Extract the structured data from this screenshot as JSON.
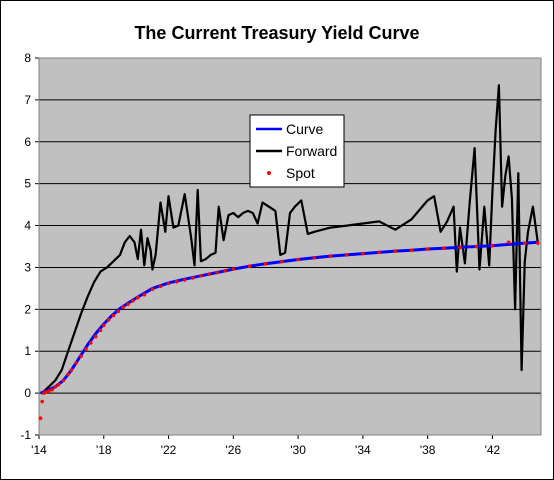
{
  "chart_data": {
    "type": "line",
    "title": "The Current Treasury Yield Curve",
    "xlabel": "",
    "ylabel": "",
    "xlim": [
      2014,
      2045
    ],
    "ylim": [
      -1,
      8
    ],
    "x_ticks": [
      2014,
      2018,
      2022,
      2026,
      2030,
      2034,
      2038,
      2042
    ],
    "x_tick_labels": [
      "'14",
      "'18",
      "'22",
      "'26",
      "'30",
      "'34",
      "'38",
      "'42"
    ],
    "y_ticks": [
      -1,
      0,
      1,
      2,
      3,
      4,
      5,
      6,
      7,
      8
    ],
    "y_tick_labels": [
      "-1",
      "0",
      "1",
      "2",
      "3",
      "4",
      "5",
      "6",
      "7",
      "8"
    ],
    "grid": true,
    "legend_position": "center-top",
    "plot_background": "#c0c0c0",
    "series": [
      {
        "name": "Curve",
        "kind": "line",
        "color": "#0000ff",
        "x": [
          2014.1,
          2014.5,
          2015,
          2015.5,
          2016,
          2016.5,
          2017,
          2017.5,
          2018,
          2018.5,
          2019,
          2019.5,
          2020,
          2021,
          2022,
          2023,
          2024,
          2025,
          2026,
          2027,
          2028,
          2029,
          2030,
          2031,
          2032,
          2033,
          2034,
          2035,
          2036,
          2037,
          2038,
          2039,
          2040,
          2041,
          2042,
          2043,
          2044,
          2044.8
        ],
        "y": [
          0.0,
          0.06,
          0.15,
          0.3,
          0.55,
          0.85,
          1.15,
          1.42,
          1.65,
          1.85,
          2.02,
          2.15,
          2.27,
          2.5,
          2.63,
          2.72,
          2.8,
          2.88,
          2.96,
          3.03,
          3.09,
          3.14,
          3.19,
          3.23,
          3.27,
          3.3,
          3.33,
          3.36,
          3.39,
          3.41,
          3.44,
          3.46,
          3.48,
          3.5,
          3.52,
          3.55,
          3.58,
          3.6
        ]
      },
      {
        "name": "Forward",
        "kind": "line",
        "color": "#000000",
        "x": [
          2014.2,
          2014.6,
          2015,
          2015.4,
          2015.8,
          2016.2,
          2016.6,
          2017,
          2017.4,
          2017.8,
          2018.2,
          2018.6,
          2019,
          2019.3,
          2019.6,
          2019.9,
          2020.1,
          2020.3,
          2020.5,
          2020.7,
          2020.9,
          2021,
          2021.2,
          2021.5,
          2021.8,
          2022,
          2022.3,
          2022.6,
          2023,
          2023.4,
          2023.6,
          2023.8,
          2024,
          2024.3,
          2024.6,
          2024.9,
          2025.1,
          2025.4,
          2025.7,
          2026,
          2026.3,
          2026.6,
          2026.9,
          2027.2,
          2027.5,
          2027.8,
          2028.2,
          2028.6,
          2028.9,
          2029.2,
          2029.5,
          2029.8,
          2030.2,
          2030.6,
          2031,
          2031.5,
          2032,
          2033,
          2034,
          2035,
          2036,
          2037,
          2038,
          2038.4,
          2038.8,
          2039.2,
          2039.6,
          2039.8,
          2040,
          2040.3,
          2040.6,
          2040.9,
          2041.2,
          2041.5,
          2041.8,
          2042,
          2042.2,
          2042.4,
          2042.6,
          2042.8,
          2043,
          2043.2,
          2043.4,
          2043.6,
          2043.8,
          2044,
          2044.2,
          2044.5,
          2044.8
        ],
        "y": [
          0.0,
          0.15,
          0.3,
          0.55,
          1.0,
          1.45,
          1.9,
          2.3,
          2.65,
          2.9,
          3.0,
          3.15,
          3.3,
          3.6,
          3.75,
          3.6,
          3.2,
          3.9,
          3.05,
          3.7,
          3.4,
          2.95,
          3.3,
          4.55,
          3.85,
          4.7,
          3.95,
          4.0,
          4.75,
          3.7,
          3.05,
          4.85,
          3.15,
          3.2,
          3.3,
          3.35,
          4.45,
          3.65,
          4.25,
          4.3,
          4.2,
          4.3,
          4.35,
          4.3,
          4.05,
          4.55,
          4.45,
          4.35,
          3.3,
          3.35,
          4.3,
          4.45,
          4.6,
          3.8,
          3.85,
          3.9,
          3.95,
          4.0,
          4.05,
          4.1,
          3.9,
          4.15,
          4.6,
          4.7,
          3.85,
          4.1,
          4.45,
          2.9,
          3.95,
          3.1,
          4.55,
          5.85,
          2.95,
          4.45,
          3.05,
          4.8,
          6.3,
          7.35,
          4.45,
          5.2,
          5.65,
          4.65,
          2.0,
          5.25,
          0.55,
          3.15,
          3.85,
          4.45,
          3.6
        ]
      },
      {
        "name": "Spot",
        "kind": "scatter",
        "color": "#ff0000",
        "x": [
          2014.1,
          2014.2,
          2014.3,
          2014.4,
          2014.6,
          2014.8,
          2015,
          2015.2,
          2015.5,
          2015.8,
          2016,
          2016.3,
          2016.6,
          2016.9,
          2017.2,
          2017.5,
          2017.8,
          2018,
          2018.3,
          2018.6,
          2018.9,
          2019.2,
          2019.5,
          2019.8,
          2020.1,
          2020.5,
          2021,
          2021.5,
          2022,
          2022.5,
          2023,
          2023.5,
          2024,
          2024.5,
          2025,
          2025.5,
          2026,
          2027,
          2028,
          2029,
          2030,
          2031,
          2032,
          2033,
          2034,
          2035,
          2036,
          2037,
          2038,
          2039,
          2040,
          2041,
          2042,
          2043,
          2044,
          2044.8
        ],
        "y": [
          -0.6,
          -0.2,
          0.0,
          0.02,
          0.05,
          0.08,
          0.15,
          0.2,
          0.3,
          0.45,
          0.55,
          0.72,
          0.88,
          1.05,
          1.2,
          1.35,
          1.5,
          1.62,
          1.75,
          1.85,
          1.95,
          2.05,
          2.12,
          2.2,
          2.28,
          2.35,
          2.48,
          2.55,
          2.62,
          2.66,
          2.7,
          2.75,
          2.8,
          2.84,
          2.88,
          2.92,
          2.96,
          3.03,
          3.09,
          3.14,
          3.19,
          3.23,
          3.27,
          3.3,
          3.33,
          3.36,
          3.39,
          3.41,
          3.44,
          3.46,
          3.48,
          3.5,
          3.52,
          3.6,
          3.58,
          3.58
        ]
      }
    ]
  }
}
